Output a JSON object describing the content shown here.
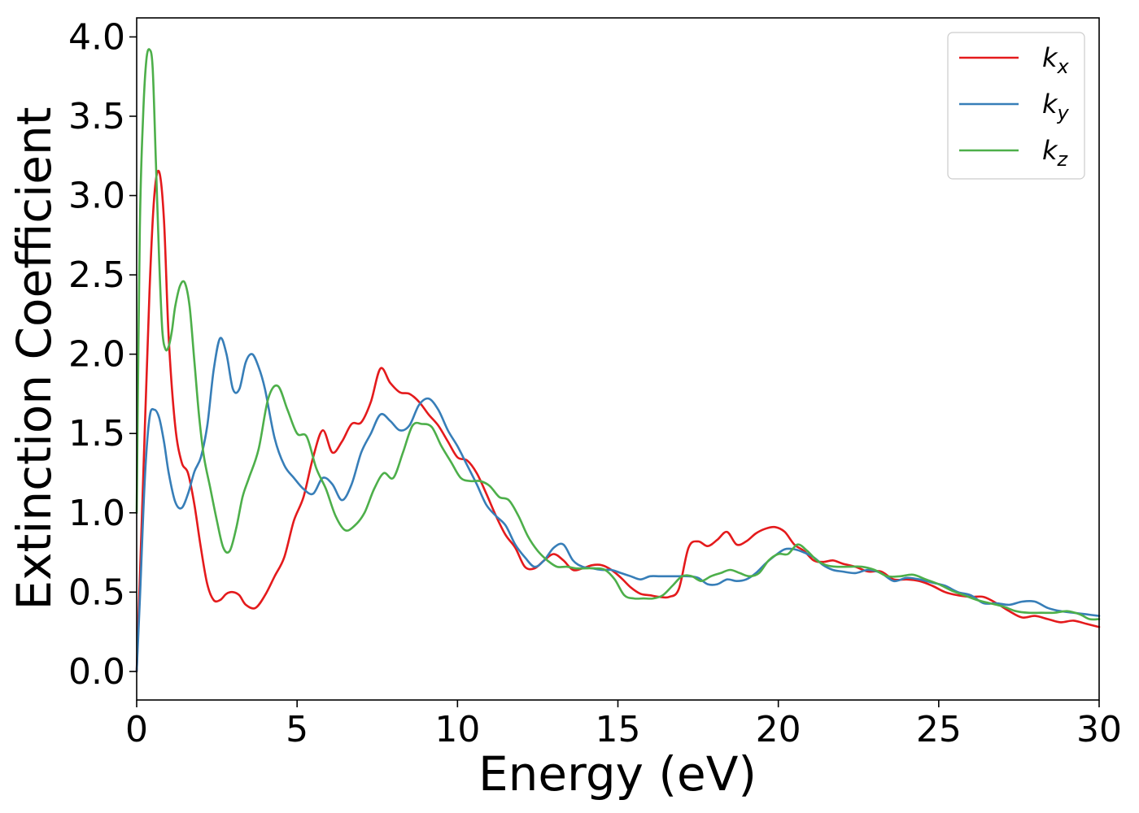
{
  "chart_data": {
    "type": "line",
    "title": "",
    "xlabel": "Energy (eV)",
    "ylabel": "Extinction Coefficient",
    "xlim": [
      0,
      30
    ],
    "ylim": [
      -0.18,
      4.12
    ],
    "xticks": [
      0,
      5,
      10,
      15,
      20,
      25,
      30
    ],
    "yticks": [
      0.0,
      0.5,
      1.0,
      1.5,
      2.0,
      2.5,
      3.0,
      3.5,
      4.0
    ],
    "grid": false,
    "legend_position": "top-right",
    "series": [
      {
        "name": "k",
        "subscript": "x",
        "color": "#e41a1c",
        "x": [
          0.0,
          0.2,
          0.4,
          0.55,
          0.7,
          0.85,
          1.0,
          1.2,
          1.4,
          1.6,
          1.8,
          2.0,
          2.2,
          2.4,
          2.6,
          2.8,
          3.0,
          3.2,
          3.4,
          3.7,
          4.0,
          4.3,
          4.6,
          4.9,
          5.2,
          5.5,
          5.8,
          6.1,
          6.4,
          6.7,
          7.0,
          7.3,
          7.6,
          7.9,
          8.2,
          8.5,
          8.8,
          9.1,
          9.4,
          9.7,
          10.0,
          10.3,
          10.6,
          10.9,
          11.2,
          11.5,
          11.8,
          12.1,
          12.4,
          12.7,
          13.0,
          13.3,
          13.6,
          13.9,
          14.2,
          14.5,
          14.8,
          15.1,
          15.4,
          15.7,
          16.0,
          16.3,
          16.6,
          16.9,
          17.2,
          17.5,
          17.8,
          18.1,
          18.4,
          18.7,
          19.0,
          19.3,
          19.6,
          19.9,
          20.2,
          20.5,
          20.8,
          21.1,
          21.4,
          21.7,
          22.0,
          22.4,
          22.8,
          23.2,
          23.6,
          24.0,
          24.4,
          24.8,
          25.2,
          25.6,
          26.0,
          26.4,
          26.8,
          27.2,
          27.6,
          28.0,
          28.4,
          28.8,
          29.2,
          29.6,
          30.0
        ],
        "values": [
          0.0,
          1.2,
          2.4,
          3.0,
          3.15,
          2.85,
          2.1,
          1.55,
          1.32,
          1.25,
          1.05,
          0.78,
          0.55,
          0.45,
          0.45,
          0.49,
          0.5,
          0.48,
          0.42,
          0.4,
          0.48,
          0.6,
          0.72,
          0.95,
          1.1,
          1.35,
          1.52,
          1.38,
          1.45,
          1.56,
          1.57,
          1.7,
          1.91,
          1.82,
          1.76,
          1.75,
          1.7,
          1.62,
          1.55,
          1.45,
          1.35,
          1.33,
          1.25,
          1.12,
          0.98,
          0.86,
          0.78,
          0.66,
          0.65,
          0.7,
          0.74,
          0.7,
          0.64,
          0.65,
          0.67,
          0.67,
          0.64,
          0.59,
          0.53,
          0.49,
          0.48,
          0.47,
          0.47,
          0.52,
          0.78,
          0.82,
          0.79,
          0.83,
          0.88,
          0.8,
          0.82,
          0.87,
          0.9,
          0.91,
          0.88,
          0.8,
          0.76,
          0.7,
          0.69,
          0.7,
          0.68,
          0.66,
          0.63,
          0.63,
          0.58,
          0.58,
          0.57,
          0.54,
          0.5,
          0.48,
          0.47,
          0.47,
          0.43,
          0.38,
          0.34,
          0.35,
          0.33,
          0.31,
          0.32,
          0.3,
          0.28
        ]
      },
      {
        "name": "k",
        "subscript": "y",
        "color": "#377eb8",
        "x": [
          0.0,
          0.1,
          0.25,
          0.4,
          0.55,
          0.7,
          0.85,
          1.0,
          1.2,
          1.4,
          1.6,
          1.8,
          2.0,
          2.2,
          2.4,
          2.6,
          2.8,
          3.0,
          3.2,
          3.4,
          3.6,
          3.8,
          4.0,
          4.3,
          4.6,
          4.9,
          5.2,
          5.5,
          5.8,
          6.1,
          6.4,
          6.7,
          7.0,
          7.3,
          7.6,
          7.9,
          8.2,
          8.5,
          8.8,
          9.1,
          9.4,
          9.7,
          10.0,
          10.3,
          10.6,
          10.9,
          11.2,
          11.5,
          11.8,
          12.1,
          12.4,
          12.7,
          13.0,
          13.3,
          13.6,
          13.9,
          14.2,
          14.5,
          14.8,
          15.1,
          15.4,
          15.7,
          16.0,
          16.3,
          16.6,
          16.9,
          17.2,
          17.5,
          17.8,
          18.1,
          18.4,
          18.7,
          19.0,
          19.3,
          19.6,
          19.9,
          20.2,
          20.5,
          20.8,
          21.1,
          21.4,
          21.7,
          22.0,
          22.4,
          22.8,
          23.2,
          23.6,
          24.0,
          24.4,
          24.8,
          25.2,
          25.6,
          26.0,
          26.4,
          26.8,
          27.2,
          27.6,
          28.0,
          28.4,
          28.8,
          29.2,
          29.6,
          30.0
        ],
        "values": [
          0.0,
          0.45,
          1.2,
          1.6,
          1.65,
          1.6,
          1.45,
          1.25,
          1.07,
          1.03,
          1.12,
          1.26,
          1.35,
          1.55,
          1.9,
          2.1,
          2.0,
          1.78,
          1.78,
          1.95,
          2.0,
          1.92,
          1.78,
          1.47,
          1.3,
          1.22,
          1.15,
          1.12,
          1.22,
          1.18,
          1.08,
          1.18,
          1.38,
          1.5,
          1.62,
          1.58,
          1.52,
          1.55,
          1.68,
          1.72,
          1.65,
          1.52,
          1.42,
          1.3,
          1.18,
          1.05,
          0.98,
          0.92,
          0.8,
          0.72,
          0.66,
          0.7,
          0.78,
          0.8,
          0.7,
          0.66,
          0.65,
          0.64,
          0.64,
          0.62,
          0.6,
          0.58,
          0.6,
          0.6,
          0.6,
          0.6,
          0.6,
          0.59,
          0.55,
          0.55,
          0.58,
          0.57,
          0.58,
          0.62,
          0.68,
          0.73,
          0.77,
          0.77,
          0.75,
          0.72,
          0.67,
          0.64,
          0.63,
          0.62,
          0.64,
          0.62,
          0.57,
          0.59,
          0.58,
          0.56,
          0.54,
          0.5,
          0.48,
          0.43,
          0.43,
          0.42,
          0.44,
          0.44,
          0.4,
          0.38,
          0.37,
          0.36,
          0.35
        ]
      },
      {
        "name": "k",
        "subscript": "z",
        "color": "#4daf4a",
        "x": [
          0.0,
          0.1,
          0.2,
          0.3,
          0.4,
          0.5,
          0.6,
          0.7,
          0.8,
          0.9,
          1.0,
          1.1,
          1.2,
          1.35,
          1.5,
          1.65,
          1.8,
          1.95,
          2.1,
          2.3,
          2.5,
          2.7,
          2.9,
          3.1,
          3.3,
          3.5,
          3.8,
          4.1,
          4.4,
          4.7,
          5.0,
          5.3,
          5.6,
          5.9,
          6.2,
          6.5,
          6.8,
          7.1,
          7.4,
          7.7,
          8.0,
          8.3,
          8.6,
          8.9,
          9.2,
          9.5,
          9.8,
          10.1,
          10.4,
          10.7,
          11.0,
          11.3,
          11.6,
          11.9,
          12.2,
          12.5,
          12.8,
          13.1,
          13.4,
          13.7,
          14.0,
          14.3,
          14.6,
          14.9,
          15.2,
          15.5,
          15.8,
          16.1,
          16.4,
          16.7,
          17.0,
          17.3,
          17.6,
          17.9,
          18.2,
          18.5,
          18.8,
          19.1,
          19.4,
          19.7,
          20.0,
          20.3,
          20.6,
          20.9,
          21.2,
          21.5,
          21.8,
          22.2,
          22.6,
          23.0,
          23.4,
          23.8,
          24.2,
          24.6,
          25.0,
          25.4,
          25.8,
          26.2,
          26.6,
          27.0,
          27.4,
          27.8,
          28.2,
          28.6,
          29.0,
          29.4,
          29.7,
          30.0
        ],
        "values": [
          1.0,
          2.8,
          3.5,
          3.85,
          3.92,
          3.8,
          3.2,
          2.6,
          2.15,
          2.03,
          2.05,
          2.15,
          2.3,
          2.43,
          2.45,
          2.3,
          1.95,
          1.6,
          1.35,
          1.15,
          0.95,
          0.78,
          0.76,
          0.9,
          1.1,
          1.22,
          1.4,
          1.72,
          1.8,
          1.65,
          1.5,
          1.48,
          1.28,
          1.15,
          0.98,
          0.89,
          0.92,
          1.0,
          1.15,
          1.25,
          1.22,
          1.38,
          1.55,
          1.56,
          1.54,
          1.42,
          1.32,
          1.22,
          1.2,
          1.2,
          1.17,
          1.1,
          1.08,
          0.98,
          0.85,
          0.76,
          0.7,
          0.66,
          0.66,
          0.65,
          0.65,
          0.65,
          0.64,
          0.58,
          0.48,
          0.46,
          0.46,
          0.46,
          0.48,
          0.54,
          0.6,
          0.6,
          0.57,
          0.6,
          0.62,
          0.64,
          0.62,
          0.6,
          0.62,
          0.7,
          0.74,
          0.74,
          0.8,
          0.76,
          0.7,
          0.67,
          0.66,
          0.66,
          0.66,
          0.64,
          0.6,
          0.6,
          0.61,
          0.58,
          0.55,
          0.51,
          0.48,
          0.45,
          0.43,
          0.41,
          0.38,
          0.37,
          0.37,
          0.37,
          0.38,
          0.36,
          0.33,
          0.33
        ]
      }
    ]
  }
}
